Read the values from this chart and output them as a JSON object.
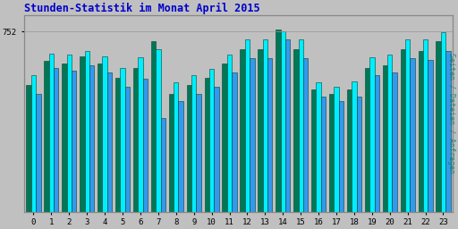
{
  "title": "Stunden-Statistik im Monat April 2015",
  "ylabel": "Seiten / Dateien / Anfragen",
  "xlabel_values": [
    0,
    1,
    2,
    3,
    4,
    5,
    6,
    7,
    8,
    9,
    10,
    11,
    12,
    13,
    14,
    15,
    16,
    17,
    18,
    19,
    20,
    21,
    22,
    23
  ],
  "ytick_label": "752",
  "ytick_value": 752,
  "ymax": 820,
  "ymin": 0,
  "background_color": "#c0c0c0",
  "title_color": "#0000cc",
  "ylabel_color": "#008888",
  "bar_color_green": "#007755",
  "bar_color_cyan": "#00eeff",
  "bar_color_blue": "#3399ee",
  "bar_edge_color": "#004433",
  "pages": [
    530,
    630,
    620,
    650,
    620,
    560,
    600,
    710,
    490,
    530,
    560,
    620,
    680,
    680,
    760,
    680,
    510,
    490,
    510,
    600,
    610,
    680,
    670,
    710
  ],
  "files": [
    570,
    660,
    655,
    670,
    650,
    600,
    645,
    680,
    540,
    570,
    595,
    655,
    720,
    720,
    752,
    720,
    540,
    520,
    545,
    645,
    655,
    720,
    720,
    750
  ],
  "requests": [
    490,
    600,
    590,
    610,
    580,
    520,
    555,
    390,
    460,
    490,
    520,
    580,
    640,
    640,
    720,
    640,
    480,
    460,
    480,
    570,
    580,
    640,
    635,
    670
  ]
}
